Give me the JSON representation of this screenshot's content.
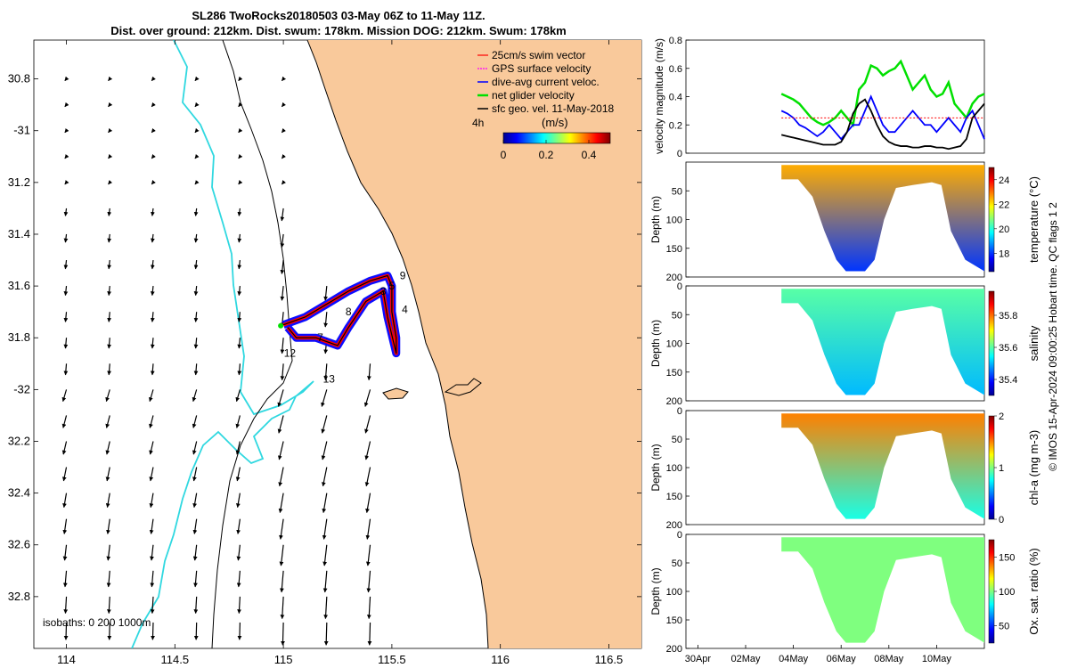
{
  "header": {
    "title_line1": "SL286 TwoRocks20180503 03-May 06Z to 11-May 11Z.",
    "title_line2": "Dist. over ground: 212km. Dist. swum: 178km. Mission DOG: 212km. Swum: 178km"
  },
  "credit": "© IMOS 15-Apr-2024 09:00:25 Hobart time. QC flags 1  2",
  "colors": {
    "land": "#f9c99b",
    "isobath_shallow": "#30d8e0",
    "track": "#ff0000",
    "dive_avg": "#0000ff",
    "net": "#00e000",
    "sfc_geo": "#000000"
  },
  "chart_data": [
    {
      "id": "map",
      "type": "scatter",
      "xlabel": "",
      "ylabel": "",
      "xlim": [
        113.85,
        116.65
      ],
      "ylim": [
        -33.0,
        -30.65
      ],
      "x_ticks": [
        114,
        114.5,
        115,
        115.5,
        116,
        116.5
      ],
      "y_ticks": [
        -30.8,
        -31,
        -31.2,
        -31.4,
        -31.6,
        -31.8,
        -32,
        -32.2,
        -32.4,
        -32.6,
        -32.8
      ],
      "x_tick_labels": [
        "114",
        "114.5",
        "115",
        "115.5",
        "116",
        "116.5"
      ],
      "y_tick_labels": [
        "30.8",
        "-31",
        "31.2",
        "31.4",
        "31.6",
        "31.8",
        "-32",
        "32.2",
        "32.4",
        "32.6",
        "32.8"
      ],
      "legend": [
        {
          "label": "25cm/s swim vector",
          "color": "#ff0000",
          "marker": "arrow"
        },
        {
          "label": "GPS surface velocity",
          "color": "#ff00ff",
          "marker": "arrow"
        },
        {
          "label": "dive-avg current veloc.",
          "color": "#0000ff",
          "marker": "arrow"
        },
        {
          "label": "net glider velocity",
          "color": "#00e000",
          "marker": "arrow"
        },
        {
          "label": "sfc geo. vel. 11-May-2018",
          "color": "#000000",
          "marker": "arrow"
        }
      ],
      "legend_position": "top-right",
      "colorbar": {
        "title": "(m/s)",
        "ticks": [
          0,
          0.2,
          0.4
        ],
        "tick_labels": [
          "0",
          "0.2",
          "0.4"
        ],
        "range": [
          0,
          0.5
        ]
      },
      "track_time_label": "4h",
      "isobaths_label": "isobaths: 0    200   1000m",
      "track_path": [
        [
          115.0,
          -31.75
        ],
        [
          115.1,
          -31.72
        ],
        [
          115.2,
          -31.67
        ],
        [
          115.3,
          -31.62
        ],
        [
          115.4,
          -31.58
        ],
        [
          115.48,
          -31.56
        ],
        [
          115.5,
          -31.6
        ],
        [
          115.5,
          -31.7
        ],
        [
          115.52,
          -31.8
        ],
        [
          115.52,
          -31.86
        ],
        [
          115.48,
          -31.72
        ],
        [
          115.46,
          -31.62
        ],
        [
          115.38,
          -31.66
        ],
        [
          115.3,
          -31.76
        ],
        [
          115.25,
          -31.83
        ],
        [
          115.15,
          -31.8
        ],
        [
          115.06,
          -31.8
        ],
        [
          115.02,
          -31.76
        ]
      ],
      "track_labels": [
        {
          "text": "9",
          "lon": 115.55,
          "lat": -31.56
        },
        {
          "text": "4",
          "lon": 115.56,
          "lat": -31.69
        },
        {
          "text": "3",
          "lon": 115.46,
          "lat": -31.62
        },
        {
          "text": "5",
          "lon": 115.5,
          "lat": -31.6
        },
        {
          "text": "8",
          "lon": 115.3,
          "lat": -31.7
        },
        {
          "text": "7",
          "lon": 115.17,
          "lat": -31.8
        },
        {
          "text": "12",
          "lon": 115.03,
          "lat": -31.86
        },
        {
          "text": "13",
          "lon": 115.21,
          "lat": -31.96
        }
      ],
      "current_field": {
        "lons": [
          114.0,
          114.2,
          114.4,
          114.6,
          114.8,
          115.0,
          115.2,
          115.4
        ],
        "lats": [
          -30.8,
          -30.9,
          -31.0,
          -31.1,
          -31.2,
          -31.3,
          -31.4,
          -31.5,
          -31.6,
          -31.7,
          -31.8,
          -31.9,
          -32.0,
          -32.1,
          -32.2,
          -32.3,
          -32.4,
          -32.5,
          -32.6,
          -32.7,
          -32.8,
          -32.9
        ]
      }
    },
    {
      "id": "velocity",
      "type": "line",
      "ylabel": "velocity magnitude (m/s)",
      "xlim": [
        29.5,
        42.0
      ],
      "ylim": [
        0,
        0.8
      ],
      "y_ticks": [
        0,
        0.2,
        0.4,
        0.6,
        0.8
      ],
      "x": [
        33.5,
        33.75,
        34.0,
        34.25,
        34.5,
        34.75,
        35.0,
        35.25,
        35.5,
        35.75,
        36.0,
        36.25,
        36.5,
        36.75,
        37.0,
        37.25,
        37.5,
        37.75,
        38.0,
        38.25,
        38.5,
        38.75,
        39.0,
        39.25,
        39.5,
        39.75,
        40.0,
        40.25,
        40.5,
        40.75,
        41.0,
        41.25,
        41.5,
        41.75,
        42.0
      ],
      "series": [
        {
          "name": "net glider velocity",
          "color": "#00e000",
          "values": [
            0.42,
            0.4,
            0.38,
            0.35,
            0.3,
            0.25,
            0.22,
            0.2,
            0.22,
            0.25,
            0.3,
            0.25,
            0.2,
            0.45,
            0.5,
            0.62,
            0.6,
            0.55,
            0.58,
            0.6,
            0.65,
            0.55,
            0.45,
            0.5,
            0.55,
            0.45,
            0.4,
            0.42,
            0.5,
            0.35,
            0.3,
            0.25,
            0.35,
            0.4,
            0.42
          ]
        },
        {
          "name": "dive-avg current veloc.",
          "color": "#0000ff",
          "values": [
            0.3,
            0.28,
            0.25,
            0.2,
            0.18,
            0.15,
            0.12,
            0.15,
            0.2,
            0.15,
            0.1,
            0.15,
            0.2,
            0.2,
            0.3,
            0.4,
            0.3,
            0.2,
            0.15,
            0.15,
            0.2,
            0.25,
            0.3,
            0.25,
            0.2,
            0.2,
            0.15,
            0.2,
            0.25,
            0.2,
            0.15,
            0.25,
            0.3,
            0.2,
            0.1
          ]
        },
        {
          "name": "sfc geo. vel.",
          "color": "#000000",
          "values": [
            0.13,
            0.12,
            0.11,
            0.1,
            0.09,
            0.08,
            0.07,
            0.06,
            0.06,
            0.06,
            0.08,
            0.15,
            0.28,
            0.35,
            0.38,
            0.3,
            0.2,
            0.12,
            0.08,
            0.06,
            0.05,
            0.05,
            0.04,
            0.04,
            0.05,
            0.05,
            0.04,
            0.04,
            0.03,
            0.04,
            0.05,
            0.1,
            0.25,
            0.3,
            0.35
          ]
        },
        {
          "name": "25cm/s swim vector",
          "color": "#ff0000",
          "values": [
            0.25,
            0.25,
            0.25,
            0.25,
            0.25,
            0.25,
            0.25,
            0.25,
            0.25,
            0.25,
            0.25,
            0.25,
            0.25,
            0.25,
            0.25,
            0.25,
            0.25,
            0.25,
            0.25,
            0.25,
            0.25,
            0.25,
            0.25,
            0.25,
            0.25,
            0.25,
            0.25,
            0.25,
            0.25,
            0.25,
            0.25,
            0.25,
            0.25,
            0.25,
            0.25
          ]
        }
      ]
    },
    {
      "id": "temperature",
      "type": "heatmap",
      "ylabel": "Depth (m)",
      "clabel": "temperature (°C)",
      "ylim": [
        200,
        0
      ],
      "y_ticks": [
        50,
        100,
        150,
        200
      ],
      "y_tick_labels": [
        "50",
        "100",
        "150",
        "200"
      ],
      "c_ticks": [
        18,
        20,
        22,
        24
      ],
      "c_range": [
        16.5,
        25
      ],
      "bottom_depth": [
        30,
        30,
        60,
        120,
        170,
        190,
        190,
        170,
        100,
        45,
        40,
        35,
        40,
        120,
        170,
        190
      ],
      "bottom_x": [
        33.5,
        34.2,
        34.8,
        35.3,
        35.8,
        36.2,
        37.0,
        37.4,
        37.8,
        38.3,
        39.0,
        39.8,
        40.2,
        40.6,
        41.2,
        42.0
      ],
      "surface_value": 22.5,
      "deep_value": 18.0
    },
    {
      "id": "salinity",
      "type": "heatmap",
      "ylabel": "Depth (m)",
      "clabel": "salinity",
      "ylim": [
        200,
        0
      ],
      "y_ticks": [
        0,
        50,
        100,
        150,
        200
      ],
      "y_tick_labels": [
        "0",
        "50",
        "100",
        "150",
        "200"
      ],
      "c_ticks": [
        35.4,
        35.6,
        35.8
      ],
      "c_range": [
        35.3,
        35.95
      ],
      "bottom_depth": [
        30,
        30,
        60,
        120,
        170,
        190,
        190,
        170,
        100,
        45,
        40,
        35,
        40,
        120,
        170,
        190
      ],
      "bottom_x": [
        33.5,
        34.2,
        34.8,
        35.3,
        35.8,
        36.2,
        37.0,
        37.4,
        37.8,
        38.3,
        39.0,
        39.8,
        40.2,
        40.6,
        41.2,
        42.0
      ],
      "surface_value": 35.6,
      "deep_value": 35.5
    },
    {
      "id": "chla",
      "type": "heatmap",
      "ylabel": "Depth (m)",
      "clabel": "chl-a (mg m-3)",
      "ylim": [
        200,
        0
      ],
      "y_ticks": [
        0,
        50,
        100,
        150,
        200
      ],
      "y_tick_labels": [
        "0",
        "50",
        "100",
        "150",
        "200"
      ],
      "c_ticks": [
        0,
        1,
        2
      ],
      "c_range": [
        0,
        2
      ],
      "bottom_depth": [
        30,
        30,
        60,
        120,
        170,
        190,
        190,
        170,
        100,
        45,
        40,
        35,
        40,
        120,
        170,
        190
      ],
      "bottom_x": [
        33.5,
        34.2,
        34.8,
        35.3,
        35.8,
        36.2,
        37.0,
        37.4,
        37.8,
        38.3,
        39.0,
        39.8,
        40.2,
        40.6,
        41.2,
        42.0
      ],
      "surface_value": 1.5,
      "deep_value": 0.8
    },
    {
      "id": "oxygen",
      "type": "heatmap",
      "ylabel": "Depth (m)",
      "clabel": "Ox. sat. ratio (%)",
      "ylim": [
        200,
        0
      ],
      "y_ticks": [
        0,
        50,
        100,
        150,
        200
      ],
      "y_tick_labels": [
        "0",
        "50",
        "100",
        "150",
        "200"
      ],
      "c_ticks": [
        50,
        100,
        150
      ],
      "c_range": [
        25,
        175
      ],
      "x_ticks": [
        30,
        32,
        34,
        36,
        38,
        40
      ],
      "x_tick_labels": [
        "30Apr",
        "02May",
        "04May",
        "06May",
        "08May",
        "10May"
      ],
      "bottom_depth": [
        30,
        30,
        60,
        120,
        170,
        190,
        190,
        170,
        100,
        45,
        40,
        35,
        40,
        120,
        170,
        190
      ],
      "bottom_x": [
        33.5,
        34.2,
        34.8,
        35.3,
        35.8,
        36.2,
        37.0,
        37.4,
        37.8,
        38.3,
        39.0,
        39.8,
        40.2,
        40.6,
        41.2,
        42.0
      ],
      "surface_value": 100,
      "deep_value": 100
    }
  ]
}
